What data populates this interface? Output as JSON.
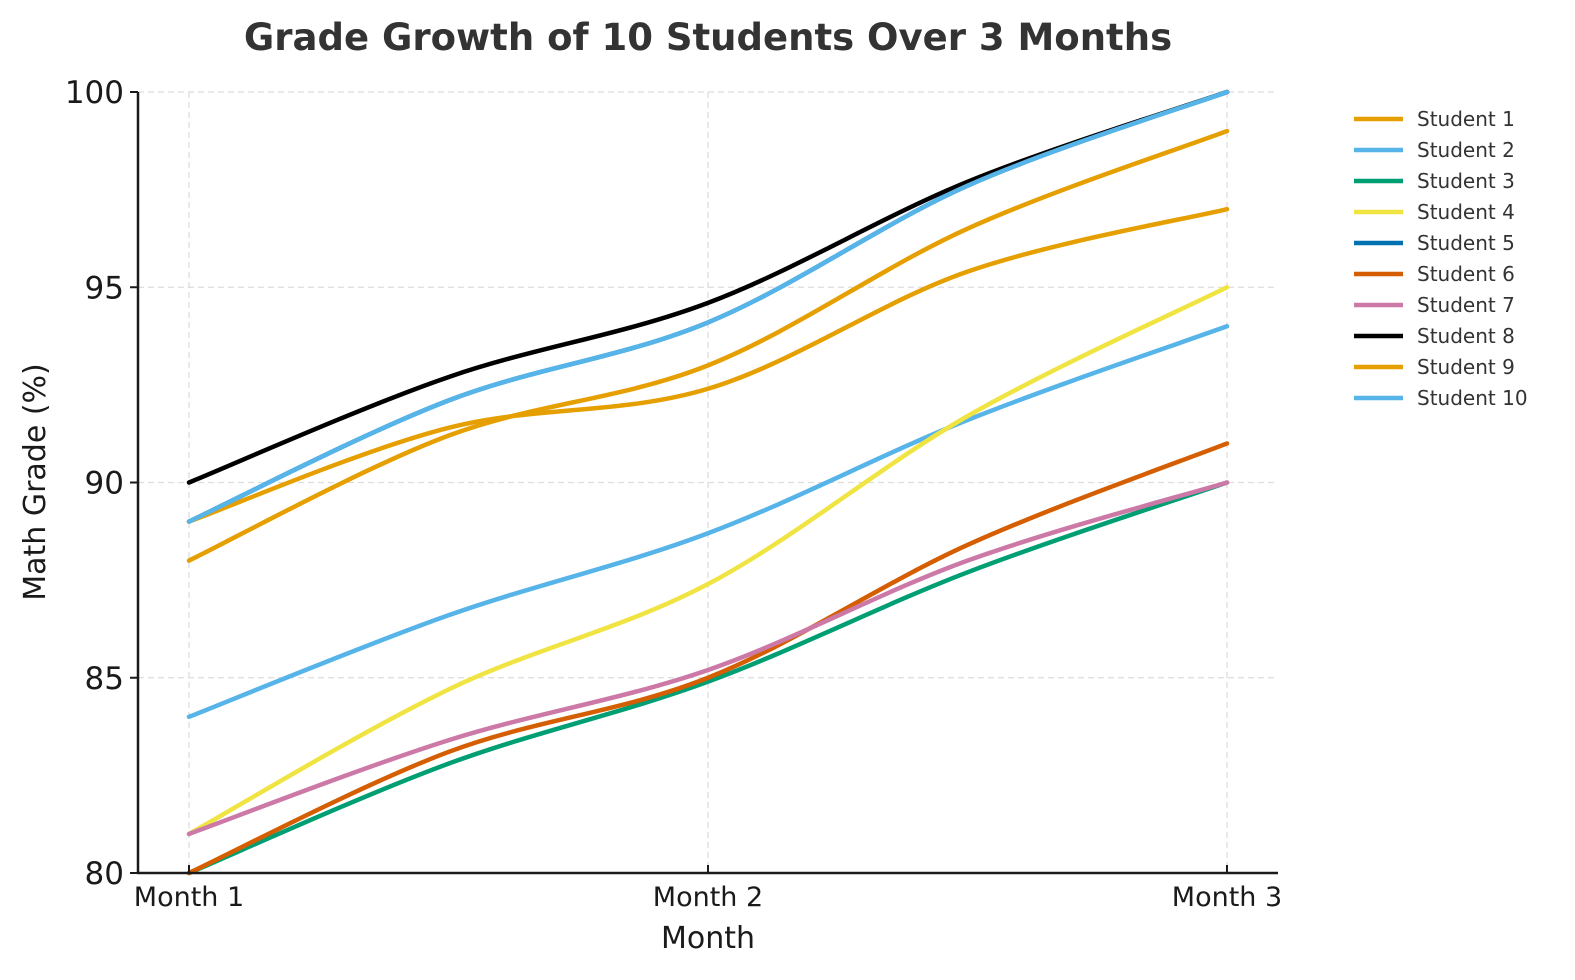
{
  "chart_data": {
    "type": "line",
    "title": "Grade Growth of 10 Students Over 3 Months",
    "xlabel": "Month",
    "ylabel": "Math Grade (%)",
    "categories": [
      "Month 1",
      "Month 2",
      "Month 3"
    ],
    "sample_x": [
      1,
      1.5,
      2,
      2.5,
      3
    ],
    "ylim": [
      80,
      100
    ],
    "yticks": [
      80,
      85,
      90,
      95,
      100
    ],
    "grid": true,
    "legend_position": "outside-right",
    "series": [
      {
        "name": "Student 1",
        "color": "#E69F00",
        "values": [
          88,
          93.0,
          99
        ],
        "curve": [
          88,
          91.2,
          93.0,
          96.5,
          99
        ]
      },
      {
        "name": "Student 2",
        "color": "#56B4E9",
        "values": [
          84,
          88.7,
          94
        ],
        "curve": [
          84,
          86.6,
          88.7,
          91.6,
          94
        ]
      },
      {
        "name": "Student 3",
        "color": "#009E73",
        "values": [
          80,
          84.9,
          90
        ],
        "curve": [
          80,
          82.8,
          84.9,
          87.7,
          90
        ]
      },
      {
        "name": "Student 4",
        "color": "#F0E442",
        "values": [
          81,
          87.4,
          95
        ],
        "curve": [
          81,
          84.7,
          87.4,
          91.7,
          95
        ]
      },
      {
        "name": "Student 5",
        "color": "#0072B2",
        "values": [
          89,
          94.1,
          100
        ],
        "curve": [
          89,
          92.1,
          94.1,
          97.6,
          100
        ]
      },
      {
        "name": "Student 6",
        "color": "#D55E00",
        "values": [
          80,
          85.0,
          91
        ],
        "curve": [
          80,
          83.1,
          85.0,
          88.4,
          91
        ]
      },
      {
        "name": "Student 7",
        "color": "#CC79A7",
        "values": [
          81,
          85.2,
          90
        ],
        "curve": [
          81,
          83.4,
          85.2,
          88.0,
          90
        ]
      },
      {
        "name": "Student 8",
        "color": "#000000",
        "values": [
          90,
          94.6,
          100
        ],
        "curve": [
          90,
          92.7,
          94.6,
          97.7,
          100
        ]
      },
      {
        "name": "Student 9",
        "color": "#E69F00",
        "values": [
          89,
          92.4,
          97
        ],
        "curve": [
          89,
          91.4,
          92.4,
          95.4,
          97
        ]
      },
      {
        "name": "Student 10",
        "color": "#56B4E9",
        "values": [
          89,
          94.1,
          100
        ],
        "curve": [
          89,
          92.1,
          94.1,
          97.6,
          100
        ]
      }
    ]
  }
}
